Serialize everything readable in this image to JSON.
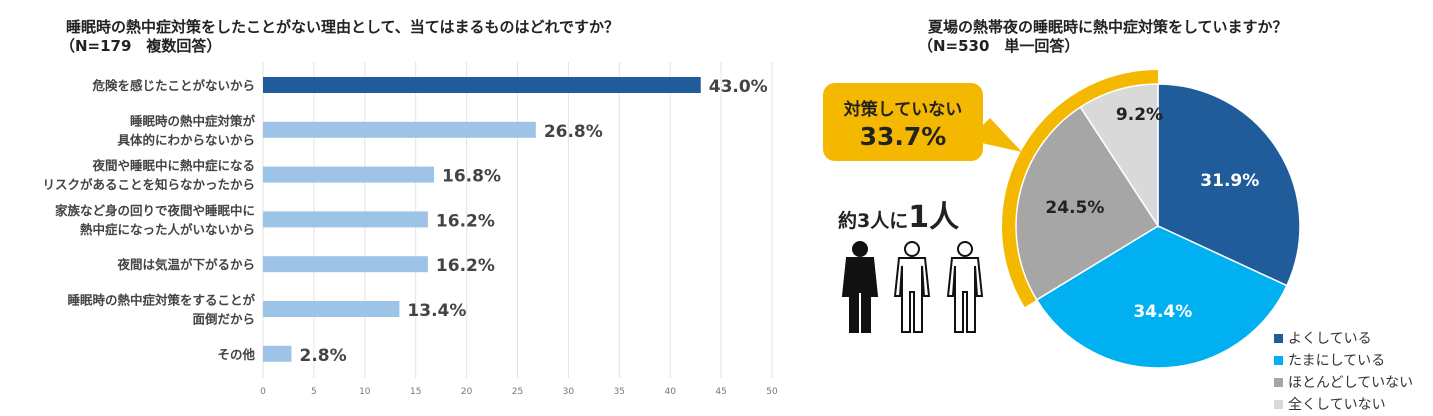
{
  "chart_data": [
    {
      "type": "bar",
      "orientation": "horizontal",
      "title": "睡眠時の熱中症対策をしたことがない理由として、当てはまるものはどれですか？",
      "subtitle": "（N=179　複数回答）",
      "categories": [
        "危険を感じたことがないから",
        "睡眠時の熱中症対策が\n具体的にわからないから",
        "夜間や睡眠中に熱中症になる\nリスクがあることを知らなかったから",
        "家族など身の回りで夜間や睡眠中に\n熱中症になった人がいないから",
        "夜間は気温が下がるから",
        "睡眠時の熱中症対策をすることが\n面倒だから",
        "その他"
      ],
      "values": [
        43.0,
        26.8,
        16.8,
        16.2,
        16.2,
        13.4,
        2.8
      ],
      "labels": [
        "43.0%",
        "26.8%",
        "16.8%",
        "16.2%",
        "16.2%",
        "13.4%",
        "2.8%"
      ],
      "xlim": [
        0,
        50
      ],
      "xticks": [
        "0",
        "5",
        "10",
        "15",
        "20",
        "25",
        "30",
        "35",
        "40",
        "45",
        "50"
      ],
      "grid": true,
      "colors": {
        "highlight": "#1f5c99",
        "default": "#9dc3e6"
      }
    },
    {
      "type": "pie",
      "title": "夏場の熱帯夜の睡眠時に熱中症対策をしていますか？",
      "subtitle": "（N=530　単一回答）",
      "categories": [
        "よくしている",
        "たまにしている",
        "ほとんどしていない",
        "全くしていない"
      ],
      "values": [
        31.9,
        34.4,
        24.5,
        9.2
      ],
      "labels": [
        "31.9%",
        "34.4%",
        "24.5%",
        "9.2%"
      ],
      "colors": [
        "#1f5c99",
        "#00b0f0",
        "#a6a6a6",
        "#d9d9d9"
      ],
      "legend": "bottom-right",
      "callout": {
        "label": "対策していない",
        "value": "33.7%",
        "color": "#f5b800"
      },
      "ratio_prefix": "約3人に",
      "ratio_value": "1人"
    }
  ]
}
